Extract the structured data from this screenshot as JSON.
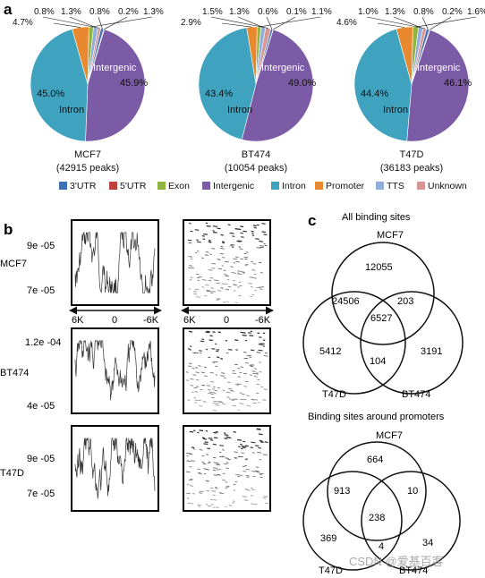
{
  "panel_labels": {
    "a": "a",
    "b": "b",
    "c": "c"
  },
  "chart_data": [
    {
      "type": "pie",
      "title": "MCF7",
      "subtitle": "(42915 peaks)",
      "slices": [
        {
          "category": "3'UTR",
          "value": 0.8
        },
        {
          "category": "5'UTR",
          "value": 0.2
        },
        {
          "category": "Exon",
          "value": 1.3
        },
        {
          "category": "Intergenic",
          "value": 45.9
        },
        {
          "category": "Intron",
          "value": 45.0
        },
        {
          "category": "Promoter",
          "value": 4.7
        },
        {
          "category": "TTS",
          "value": 1.3
        },
        {
          "category": "Unknown",
          "value": 0.8
        }
      ],
      "slice_labels": {
        "Intergenic": "Intergenic",
        "Intron": "Intron"
      }
    },
    {
      "type": "pie",
      "title": "BT474",
      "subtitle": "(10054 peaks)",
      "slices": [
        {
          "category": "3'UTR",
          "value": 0.6
        },
        {
          "category": "5'UTR",
          "value": 0.1
        },
        {
          "category": "Exon",
          "value": 1.1
        },
        {
          "category": "Intergenic",
          "value": 49.0
        },
        {
          "category": "Intron",
          "value": 43.4
        },
        {
          "category": "Promoter",
          "value": 2.9
        },
        {
          "category": "TTS",
          "value": 1.3
        },
        {
          "category": "Unknown",
          "value": 1.5
        }
      ],
      "slice_labels": {
        "Intergenic": "Intergenic",
        "Intron": "Intron"
      }
    },
    {
      "type": "pie",
      "title": "T47D",
      "subtitle": "(36183 peaks)",
      "slices": [
        {
          "category": "3'UTR",
          "value": 0.8
        },
        {
          "category": "5'UTR",
          "value": 0.2
        },
        {
          "category": "Exon",
          "value": 1.6
        },
        {
          "category": "Intergenic",
          "value": 46.1
        },
        {
          "category": "Intron",
          "value": 44.4
        },
        {
          "category": "Promoter",
          "value": 4.6
        },
        {
          "category": "TTS",
          "value": 1.3
        },
        {
          "category": "Unknown",
          "value": 1.0
        }
      ],
      "slice_labels": {
        "Intergenic": "Intergenic",
        "Intron": "Intron"
      }
    }
  ],
  "legend": [
    {
      "label": "3'UTR",
      "color": "#3f6fb5"
    },
    {
      "label": "5'UTR",
      "color": "#c0403e"
    },
    {
      "label": "Exon",
      "color": "#8fb53f"
    },
    {
      "label": "Intergenic",
      "color": "#7c5ba6"
    },
    {
      "label": "Intron",
      "color": "#3fa3bf"
    },
    {
      "label": "Promoter",
      "color": "#e8882f"
    },
    {
      "label": "TTS",
      "color": "#8faedb"
    },
    {
      "label": "Unknown",
      "color": "#d99594"
    }
  ],
  "profiles": {
    "rows": [
      {
        "cell_line": "MCF7",
        "y_ticks": [
          "9e -05",
          "7e -05"
        ]
      },
      {
        "cell_line": "BT474",
        "y_ticks": [
          "1.2e -04",
          "4e -05"
        ]
      },
      {
        "cell_line": "T47D",
        "y_ticks": [
          "9e -05",
          "7e -05"
        ]
      }
    ],
    "axis_ticks": [
      "6K",
      "0",
      "-6K"
    ]
  },
  "venn": [
    {
      "title": "All binding sites",
      "set_labels": {
        "top": "MCF7",
        "left": "T47D",
        "right": "BT474"
      },
      "regions": {
        "mcf7_only": "12055",
        "mcf7_t47d": "24506",
        "mcf7_bt474": "203",
        "all_three": "6527",
        "t47d_only": "5412",
        "t47d_bt474": "104",
        "bt474_only": "3191"
      }
    },
    {
      "title": "Binding sites around promoters",
      "set_labels": {
        "top": "MCF7",
        "left": "T47D",
        "right": "BT474"
      },
      "regions": {
        "mcf7_only": "664",
        "mcf7_t47d": "913",
        "mcf7_bt474": "10",
        "all_three": "238",
        "t47d_only": "369",
        "t47d_bt474": "4",
        "bt474_only": "34"
      }
    }
  ],
  "watermark": "CSDN @爱基百客"
}
